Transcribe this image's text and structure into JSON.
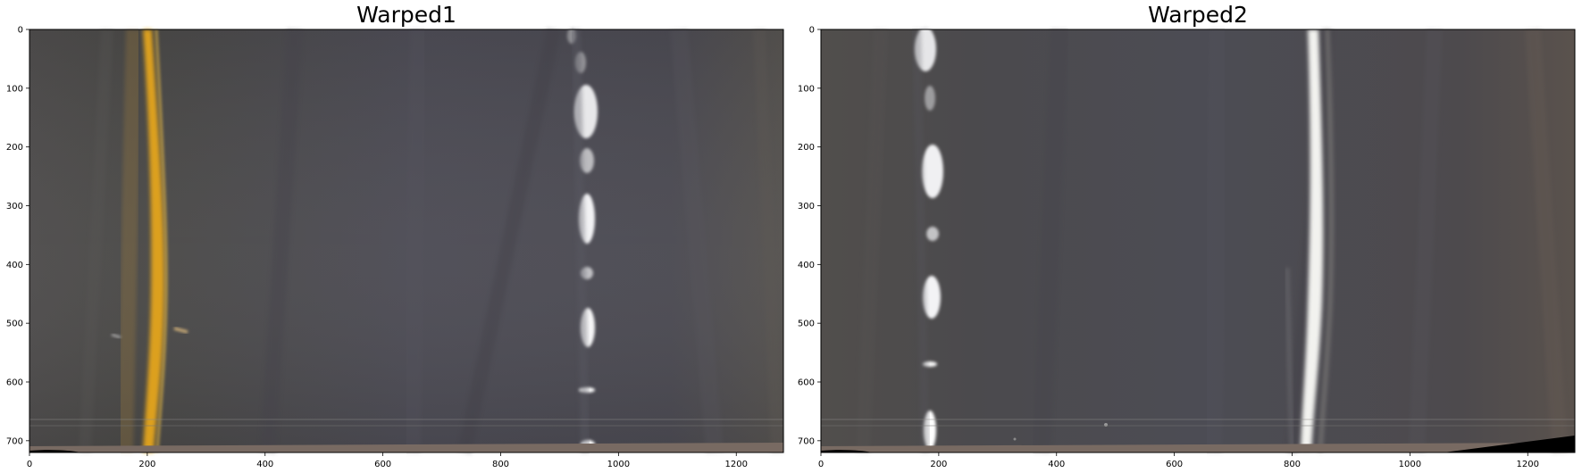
{
  "figure": {
    "panels": [
      {
        "title": "Warped1",
        "xticks": [
          "0",
          "200",
          "400",
          "600",
          "800",
          "1000",
          "1200"
        ],
        "yticks": [
          "0",
          "100",
          "200",
          "300",
          "400",
          "500",
          "600",
          "700"
        ],
        "xlim": [
          0,
          1280
        ],
        "ylim": [
          720,
          0
        ],
        "image": {
          "description_icon": "warped-road-image",
          "road_color": "#4c4c55",
          "left_lane_color": "#e4a51f",
          "right_lane_color": "#f2f2f2",
          "left_lane_type": "solid-yellow",
          "right_lane_type": "dashed-white"
        }
      },
      {
        "title": "Warped2",
        "xticks": [
          "0",
          "200",
          "400",
          "600",
          "800",
          "1000",
          "1200"
        ],
        "yticks": [
          "0",
          "100",
          "200",
          "300",
          "400",
          "500",
          "600",
          "700"
        ],
        "xlim": [
          0,
          1280
        ],
        "ylim": [
          720,
          0
        ],
        "image": {
          "description_icon": "warped-road-image",
          "road_color": "#4d4b50",
          "left_lane_color": "#f2f2f2",
          "right_lane_color": "#f5f5f0",
          "left_lane_type": "dashed-white",
          "right_lane_type": "solid-white"
        }
      }
    ]
  }
}
